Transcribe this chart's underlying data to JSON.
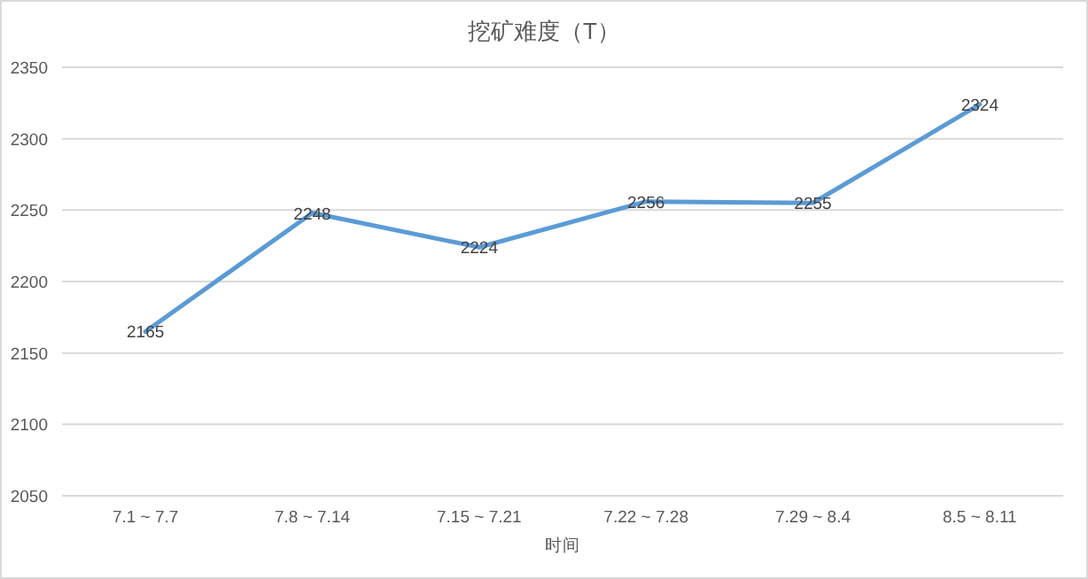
{
  "chart_data": {
    "type": "line",
    "title": "挖矿难度（T）",
    "xlabel": "时间",
    "categories": [
      "7.1 ~ 7.7",
      "7.8 ~ 7.14",
      "7.15 ~ 7.21",
      "7.22 ~ 7.28",
      "7.29 ~ 8.4",
      "8.5 ~ 8.11"
    ],
    "values": [
      2165,
      2248,
      2224,
      2256,
      2255,
      2324
    ],
    "color": "#5b9bd5",
    "ylim": [
      2050,
      2350
    ],
    "yticks": [
      2050,
      2100,
      2150,
      2200,
      2250,
      2300,
      2350
    ],
    "grid": "y",
    "data_labels": true,
    "marker": "none",
    "line_style": "solid"
  }
}
